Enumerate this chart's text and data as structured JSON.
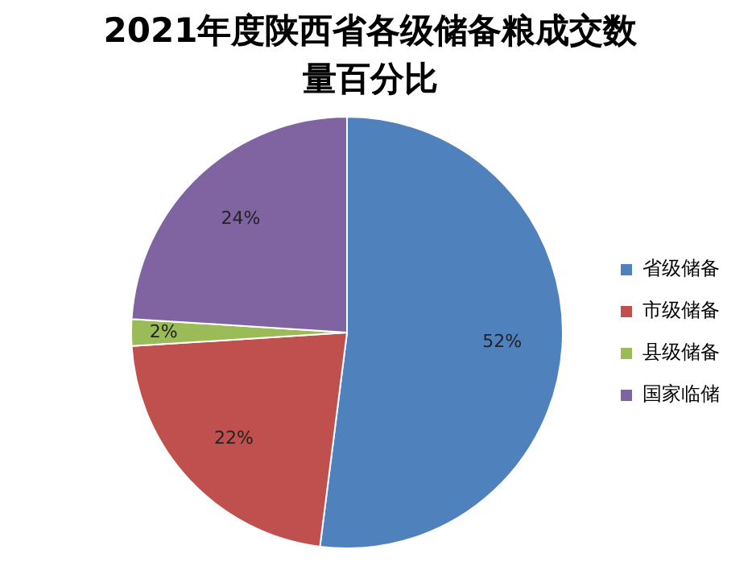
{
  "chart_data": {
    "type": "pie",
    "title": "2021年度陕西省各级储备粮成交数量百分比",
    "categories": [
      "省级储备",
      "市级储备",
      "县级储备",
      "国家临储"
    ],
    "values": [
      52,
      22,
      2,
      24
    ],
    "value_labels": [
      "52%",
      "22%",
      "2%",
      "24%"
    ],
    "colors": [
      "#4f81bd",
      "#c0504d",
      "#9bbb59",
      "#8064a2"
    ],
    "legend": "right"
  }
}
